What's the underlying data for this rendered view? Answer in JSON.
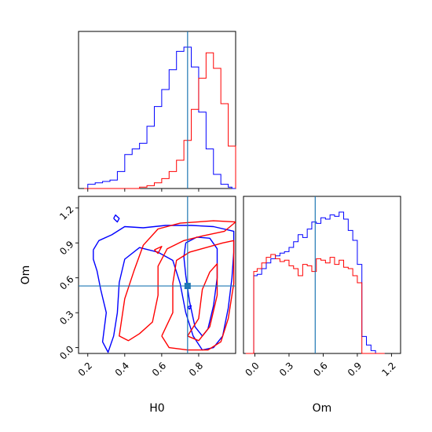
{
  "colors": {
    "series_a": "#0000ff",
    "series_b": "#ff0000",
    "truth": "#1f77b4"
  },
  "labels": {
    "h0": "H0",
    "om": "Om"
  },
  "chart_data": [
    {
      "type": "histogram",
      "panel": "H0 marginal (top-left)",
      "xlim": [
        0.15,
        1.0
      ],
      "x_ticks": [
        0.2,
        0.4,
        0.6,
        0.8
      ],
      "y_ticks_shown": false,
      "truth": 0.74,
      "bin_edges": [
        0.18,
        0.2,
        0.22,
        0.24,
        0.26,
        0.28,
        0.3,
        0.32,
        0.34,
        0.36,
        0.38,
        0.4,
        0.42,
        0.44,
        0.46,
        0.48,
        0.5,
        0.52,
        0.54,
        0.56,
        0.58,
        0.6,
        0.62,
        0.64,
        0.66,
        0.68,
        0.7,
        0.72,
        0.74,
        0.76,
        0.78,
        0.8,
        0.82,
        0.84,
        0.86,
        0.88,
        0.9,
        0.92,
        0.94,
        0.96,
        0.98,
        1.0
      ],
      "series": [
        {
          "color": "blue",
          "counts": [
            0.0,
            0.03,
            0.03,
            0.04,
            0.04,
            0.05,
            0.05,
            0.06,
            0.06,
            0.12,
            0.12,
            0.24,
            0.24,
            0.28,
            0.28,
            0.32,
            0.32,
            0.44,
            0.44,
            0.58,
            0.58,
            0.7,
            0.7,
            0.84,
            0.84,
            0.97,
            0.97,
            1.0,
            1.0,
            0.86,
            0.86,
            0.54,
            0.54,
            0.28,
            0.28,
            0.1,
            0.1,
            0.03,
            0.03,
            0.01,
            0.0
          ]
        },
        {
          "color": "red",
          "counts": [
            0.0,
            0.0,
            0.0,
            0.0,
            0.0,
            0.0,
            0.0,
            0.0,
            0.0,
            0.0,
            0.0,
            0.0,
            0.0,
            0.0,
            0.0,
            0.01,
            0.01,
            0.02,
            0.02,
            0.04,
            0.04,
            0.07,
            0.07,
            0.12,
            0.12,
            0.2,
            0.2,
            0.34,
            0.34,
            0.56,
            0.56,
            0.78,
            0.78,
            0.96,
            0.96,
            0.85,
            0.85,
            0.6,
            0.6,
            0.3,
            0.3
          ]
        }
      ]
    },
    {
      "type": "contour",
      "panel": "H0 vs Om joint (bottom-left)",
      "xlim": [
        0.15,
        1.0
      ],
      "ylim": [
        -0.05,
        1.3
      ],
      "x_ticks": [
        0.2,
        0.4,
        0.6,
        0.8
      ],
      "y_ticks": [
        0.0,
        0.3,
        0.6,
        0.9,
        1.2
      ],
      "truth": [
        0.74,
        0.53
      ],
      "series": [
        {
          "color": "blue",
          "contours": [
            [
              [
                0.23,
                0.84
              ],
              [
                0.26,
                0.92
              ],
              [
                0.33,
                0.97
              ],
              [
                0.4,
                1.04
              ],
              [
                0.5,
                1.03
              ],
              [
                0.62,
                1.05
              ],
              [
                0.76,
                1.05
              ],
              [
                0.88,
                1.04
              ],
              [
                0.99,
                1.0
              ],
              [
                0.99,
                0.82
              ],
              [
                0.98,
                0.6
              ],
              [
                0.96,
                0.34
              ],
              [
                0.93,
                0.1
              ],
              [
                0.88,
                0.0
              ],
              [
                0.82,
                -0.02
              ],
              [
                0.77,
                0.1
              ],
              [
                0.73,
                0.3
              ],
              [
                0.7,
                0.55
              ],
              [
                0.66,
                0.75
              ],
              [
                0.58,
                0.82
              ],
              [
                0.48,
                0.86
              ],
              [
                0.4,
                0.76
              ],
              [
                0.37,
                0.56
              ],
              [
                0.36,
                0.3
              ],
              [
                0.34,
                0.1
              ],
              [
                0.31,
                -0.04
              ],
              [
                0.28,
                0.05
              ],
              [
                0.3,
                0.3
              ],
              [
                0.27,
                0.5
              ],
              [
                0.25,
                0.66
              ],
              [
                0.23,
                0.76
              ],
              [
                0.23,
                0.84
              ]
            ],
            [
              [
                0.73,
                0.9
              ],
              [
                0.79,
                0.95
              ],
              [
                0.86,
                0.94
              ],
              [
                0.9,
                0.85
              ],
              [
                0.9,
                0.6
              ],
              [
                0.88,
                0.36
              ],
              [
                0.85,
                0.16
              ],
              [
                0.82,
                0.1
              ],
              [
                0.78,
                0.18
              ],
              [
                0.75,
                0.4
              ],
              [
                0.73,
                0.62
              ],
              [
                0.72,
                0.78
              ],
              [
                0.73,
                0.9
              ]
            ],
            [
              [
                0.34,
                1.11
              ],
              [
                0.35,
                1.14
              ],
              [
                0.37,
                1.11
              ],
              [
                0.36,
                1.08
              ],
              [
                0.34,
                1.11
              ]
            ],
            [
              [
                0.74,
                0.35
              ],
              [
                0.76,
                0.36
              ],
              [
                0.75,
                0.33
              ],
              [
                0.74,
                0.35
              ]
            ]
          ]
        },
        {
          "color": "red",
          "contours": [
            [
              [
                0.48,
                0.12
              ],
              [
                0.55,
                0.22
              ],
              [
                0.58,
                0.45
              ],
              [
                0.58,
                0.7
              ],
              [
                0.63,
                0.85
              ],
              [
                0.72,
                0.92
              ],
              [
                0.82,
                0.96
              ],
              [
                0.94,
                1.0
              ],
              [
                1.0,
                1.08
              ],
              [
                0.88,
                1.09
              ],
              [
                0.7,
                1.07
              ],
              [
                0.58,
                1.02
              ],
              [
                0.5,
                0.88
              ],
              [
                0.45,
                0.66
              ],
              [
                0.4,
                0.42
              ],
              [
                0.37,
                0.1
              ],
              [
                0.42,
                0.06
              ],
              [
                0.48,
                0.12
              ]
            ],
            [
              [
                0.6,
                0.1
              ],
              [
                0.66,
                0.3
              ],
              [
                0.66,
                0.55
              ],
              [
                0.68,
                0.75
              ],
              [
                0.75,
                0.82
              ],
              [
                0.84,
                0.86
              ],
              [
                0.93,
                0.9
              ],
              [
                0.99,
                0.92
              ],
              [
                0.99,
                0.55
              ],
              [
                0.96,
                0.25
              ],
              [
                0.92,
                0.05
              ],
              [
                0.85,
                -0.02
              ],
              [
                0.74,
                -0.02
              ],
              [
                0.64,
                0.0
              ],
              [
                0.6,
                0.1
              ]
            ],
            [
              [
                0.74,
                0.1
              ],
              [
                0.8,
                0.25
              ],
              [
                0.82,
                0.5
              ],
              [
                0.86,
                0.65
              ],
              [
                0.9,
                0.72
              ],
              [
                0.9,
                0.45
              ],
              [
                0.86,
                0.18
              ],
              [
                0.8,
                0.06
              ],
              [
                0.74,
                0.1
              ]
            ],
            [
              [
                0.56,
                0.84
              ],
              [
                0.6,
                0.87
              ],
              [
                0.58,
                0.81
              ],
              [
                0.56,
                0.84
              ]
            ]
          ]
        }
      ]
    },
    {
      "type": "histogram",
      "panel": "Om marginal (bottom-right)",
      "xlim": [
        -0.1,
        1.28
      ],
      "x_ticks": [
        0.0,
        0.3,
        0.6,
        0.9,
        1.2
      ],
      "y_ticks_shown": false,
      "truth": 0.53,
      "bin_edges": [
        -0.08,
        -0.01,
        0.02,
        0.06,
        0.1,
        0.14,
        0.18,
        0.22,
        0.26,
        0.3,
        0.34,
        0.38,
        0.42,
        0.46,
        0.5,
        0.54,
        0.58,
        0.62,
        0.66,
        0.7,
        0.74,
        0.78,
        0.82,
        0.86,
        0.9,
        0.94,
        0.98,
        1.02,
        1.06,
        1.1,
        1.14
      ],
      "series": [
        {
          "color": "blue",
          "counts": [
            0.0,
            0.55,
            0.56,
            0.6,
            0.64,
            0.67,
            0.69,
            0.71,
            0.72,
            0.75,
            0.79,
            0.84,
            0.82,
            0.88,
            0.93,
            0.92,
            0.96,
            0.95,
            0.98,
            0.97,
            1.0,
            0.95,
            0.87,
            0.8,
            0.63,
            0.12,
            0.06,
            0.02,
            0.0,
            0.0
          ]
        },
        {
          "color": "red",
          "counts": [
            0.0,
            0.58,
            0.6,
            0.64,
            0.68,
            0.7,
            0.67,
            0.65,
            0.66,
            0.62,
            0.6,
            0.55,
            0.63,
            0.62,
            0.58,
            0.67,
            0.66,
            0.64,
            0.68,
            0.63,
            0.66,
            0.61,
            0.6,
            0.55,
            0.5,
            0.0,
            0.0,
            0.0,
            0.0,
            0.0
          ]
        }
      ]
    }
  ]
}
